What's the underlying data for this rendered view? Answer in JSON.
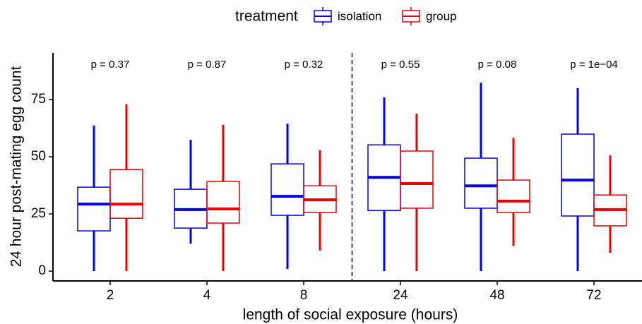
{
  "chart_data": {
    "type": "box",
    "legend_title": "treatment",
    "xlabel": "length of social exposure (hours)",
    "ylabel": "24 hour post-mating egg count",
    "categories": [
      "2",
      "4",
      "8",
      "24",
      "48",
      "72"
    ],
    "annotations": [
      "p = 0.37",
      "p = 0.87",
      "p = 0.32",
      "p = 0.55",
      "p = 0.08",
      "p = 1e−04"
    ],
    "series": [
      {
        "name": "isolation",
        "color": "#0000ee",
        "low": [
          0,
          12,
          1,
          0,
          0,
          0
        ],
        "q1": [
          17.6,
          18.8,
          24.4,
          26.5,
          27.5,
          24.1
        ],
        "median": [
          29.3,
          26.9,
          32.7,
          41,
          37.3,
          39.8
        ],
        "q3": [
          36.7,
          35.8,
          46.9,
          55.2,
          49.4,
          59.9
        ],
        "high": [
          63.6,
          57.4,
          64.5,
          75.9,
          82.4,
          80
        ]
      },
      {
        "name": "group",
        "color": "#ee0000",
        "low": [
          0,
          0,
          9,
          0,
          11,
          8
        ],
        "q1": [
          23.1,
          21,
          25.6,
          27.5,
          25.6,
          19.8
        ],
        "median": [
          29.3,
          27.2,
          31.2,
          38.3,
          30.6,
          26.9
        ],
        "q3": [
          44.4,
          39.2,
          37.3,
          52.5,
          39.8,
          33.3
        ],
        "high": [
          73,
          64,
          52.8,
          68.8,
          58.3,
          50.6
        ]
      }
    ],
    "ylim": [
      -4.3,
      95.4
    ],
    "yticks": [
      0,
      25,
      50,
      75
    ]
  }
}
